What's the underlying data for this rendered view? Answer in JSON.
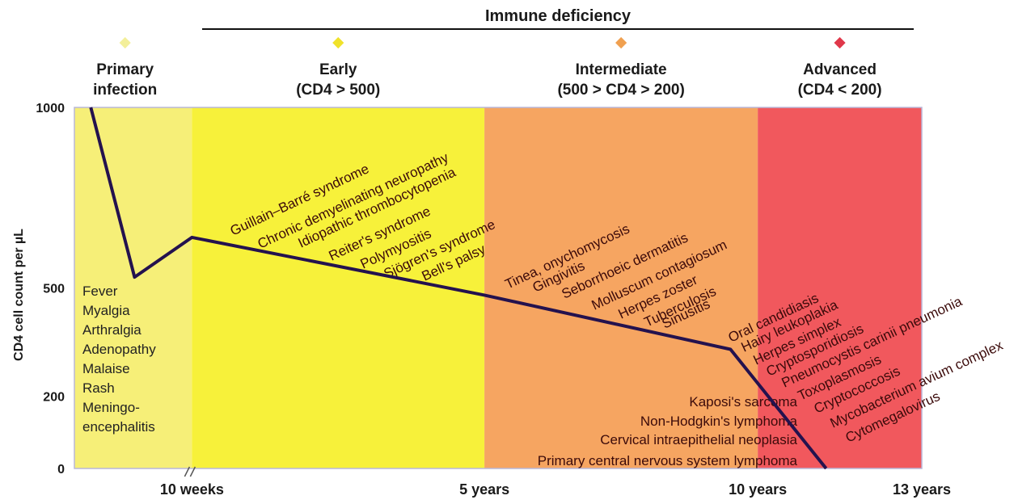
{
  "chart_data": {
    "type": "line",
    "title": "Immune deficiency",
    "ylabel": "CD4 cell count per µL",
    "xlabel": "",
    "yticks": [
      "1000",
      "500",
      "200",
      "0"
    ],
    "ylim": [
      0,
      1000
    ],
    "xticks": [
      {
        "label": "10 weeks",
        "x": 0.43
      },
      {
        "label": "5 years",
        "x": 1.5
      },
      {
        "label": "10 years",
        "x": 2.5
      },
      {
        "label": "13 years",
        "x": 3.1
      }
    ],
    "phases": [
      {
        "name": "Primary infection",
        "label_lines": [
          "Primary",
          "infection"
        ],
        "x_range": [
          0,
          0.43
        ],
        "color": "#f6ef78",
        "marker_color": "#f3ef9a"
      },
      {
        "name": "Early (CD4 > 500)",
        "label_lines": [
          "Early",
          "(CD4 > 500)"
        ],
        "x_range": [
          0.43,
          1.5
        ],
        "color": "#f7f13a",
        "marker_color": "#f0e22a"
      },
      {
        "name": "Intermediate (500 > CD4 > 200)",
        "label_lines": [
          "Intermediate",
          "(500 > CD4 > 200)"
        ],
        "x_range": [
          1.5,
          2.5
        ],
        "color": "#f6a561",
        "marker_color": "#f0a050"
      },
      {
        "name": "Advanced (CD4 < 200)",
        "label_lines": [
          "Advanced",
          "(CD4 < 200)"
        ],
        "x_range": [
          2.5,
          3.1
        ],
        "color": "#f1585d",
        "marker_color": "#e0384a"
      }
    ],
    "series": [
      {
        "points": [
          [
            0.06,
            1000
          ],
          [
            0.22,
            530
          ],
          [
            0.43,
            640
          ],
          [
            1.5,
            480
          ],
          [
            2.4,
            330
          ],
          [
            2.75,
            0
          ]
        ]
      }
    ],
    "axis_break_at": 0.43,
    "symptoms_primary": [
      "Fever",
      "Myalgia",
      "Arthralgia",
      "Adenopathy",
      "Malaise",
      "Rash",
      "Meningo-",
      "encephalitis"
    ],
    "conditions_early": [
      "Guillain–Barré syndrome",
      "Chronic demyelinating neuropathy",
      "Idiopathic thrombocytopenia",
      "Reiter's syndrome",
      "Polymyositis",
      "Sjögren's syndrome",
      "Bell's palsy"
    ],
    "conditions_intermediate": [
      "Tinea, onychomycosis",
      "Gingivitis",
      "Seborrhoeic dermatitis",
      "Molluscum contagiosum",
      "Herpes zoster",
      "Tuberculosis",
      "Sinusitis"
    ],
    "malignancies": [
      "Kaposi's sarcoma",
      "Non-Hodgkin's lymphoma",
      "Cervical intraepithelial neoplasia",
      "Primary central nervous system lymphoma"
    ],
    "conditions_advanced": [
      "Oral candidiasis",
      "Hairy leukoplakia",
      "Herpes simplex",
      "Cryptosporidiosis",
      "Pneumocystis carinii pneumonia",
      "Toxoplasmosis",
      "Cryptococcosis",
      "Mycobacterium avium complex",
      "Cytomegalovirus"
    ],
    "line_color": "#24124e",
    "grid": false
  }
}
